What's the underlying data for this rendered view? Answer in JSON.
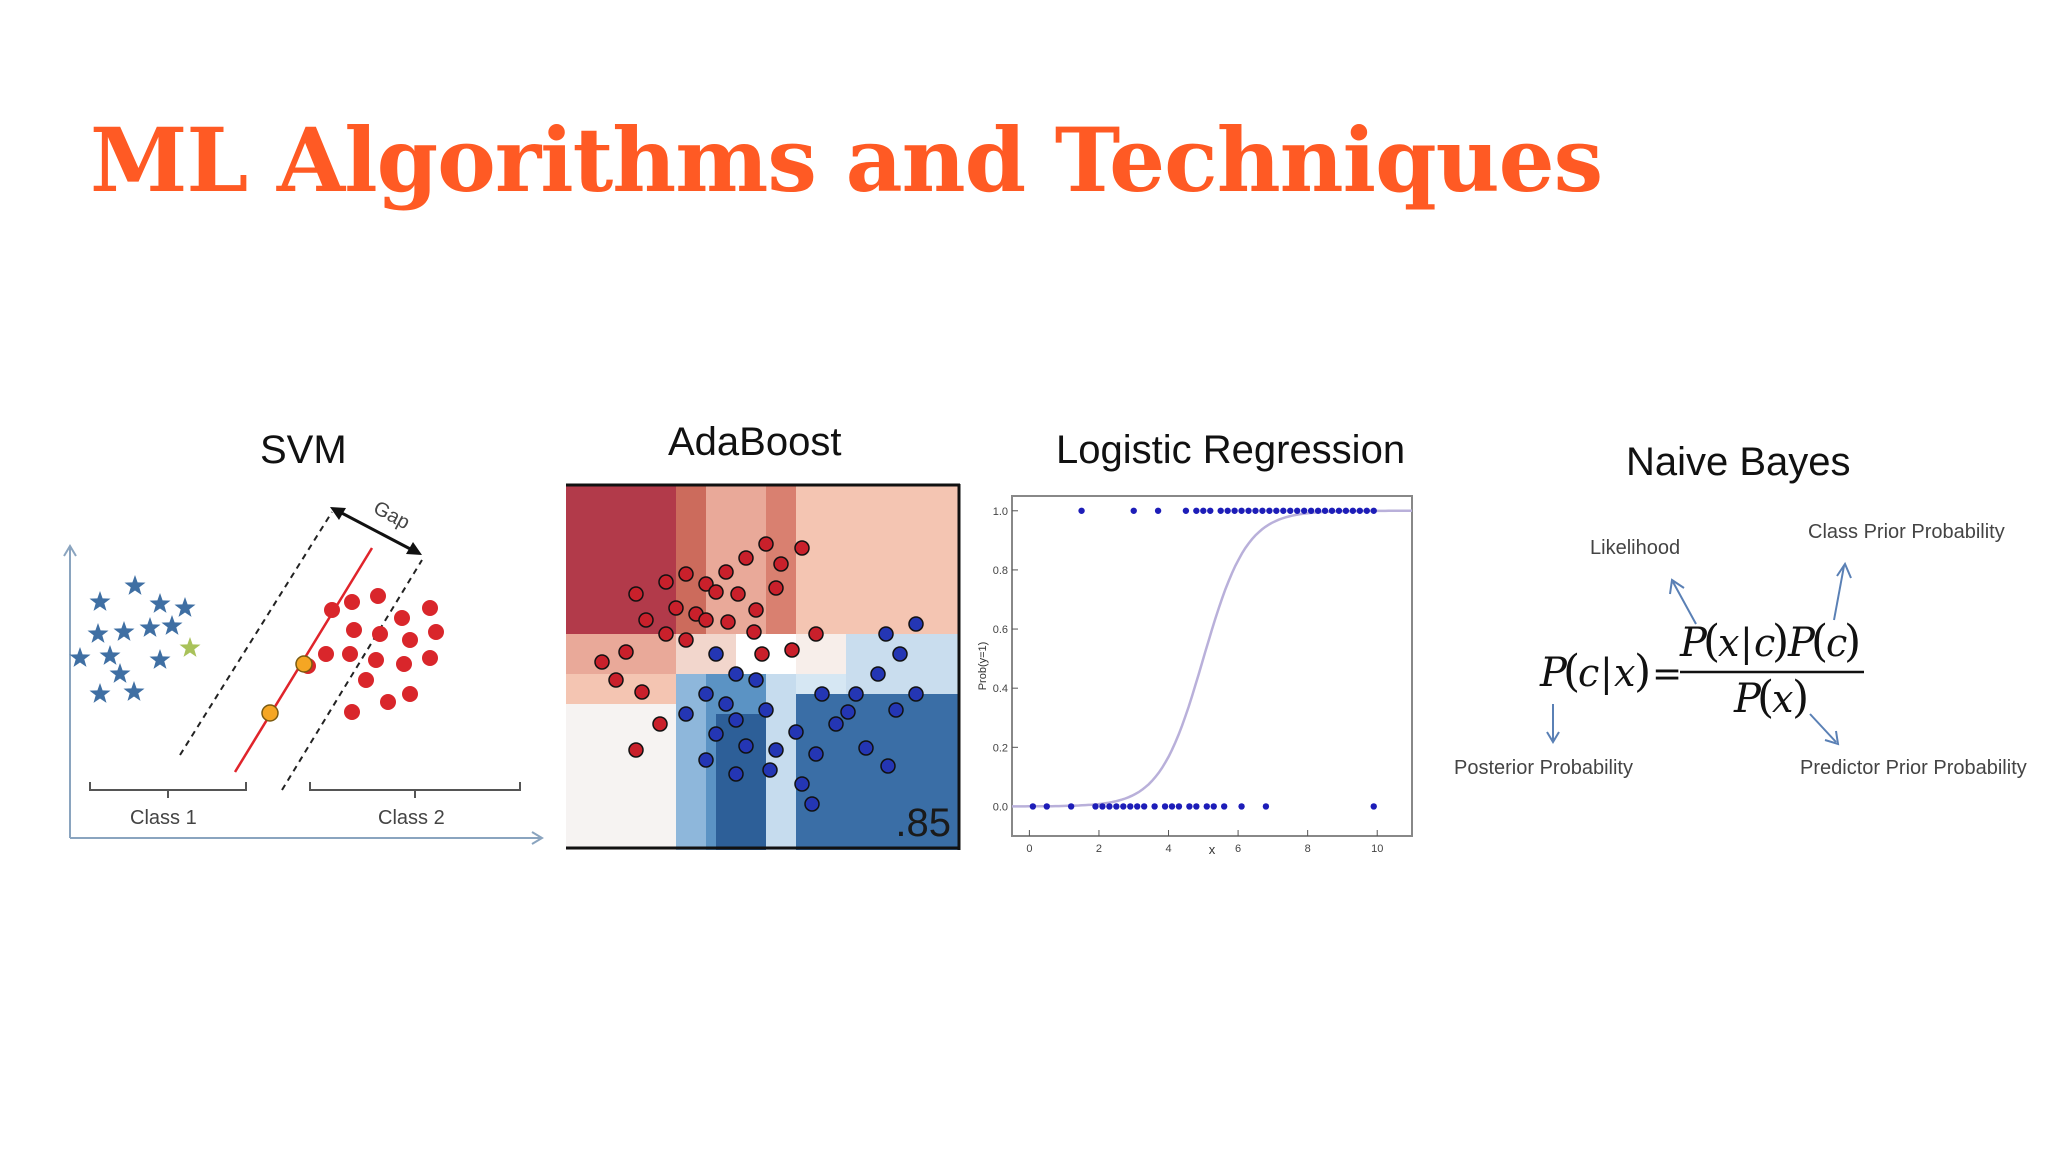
{
  "slide": {
    "title": "ML Algorithms and Techniques",
    "accent_color": "#ff5a24"
  },
  "panels": {
    "svm": {
      "title": "SVM",
      "gap_label": "Gap",
      "class1_label": "Class 1",
      "class2_label": "Class 2",
      "class1_color": "#3f6fa3",
      "class2_color": "#d9262b",
      "support_vector_color": "#f5a623"
    },
    "adaboost": {
      "title": "AdaBoost",
      "score": ".85"
    },
    "logistic_regression": {
      "title": "Logistic Regression",
      "xlabel": "x",
      "ylabel": "Prob(y=1)"
    },
    "naive_bayes": {
      "title": "Naive Bayes",
      "likelihood": "Likelihood",
      "class_prior": "Class Prior Probability",
      "posterior": "Posterior Probability",
      "predictor_prior": "Predictor Prior Probability"
    }
  },
  "chart_data": {
    "type": "scatter",
    "xlim": [
      -0.5,
      11
    ],
    "ylim": [
      -0.1,
      1.05
    ],
    "x_ticks": [
      "0",
      "2",
      "4",
      "6",
      "8",
      "10"
    ],
    "y_ticks": [
      "0.0",
      "0.2",
      "0.4",
      "0.6",
      "0.8",
      "1.0"
    ],
    "xlabel": "x",
    "ylabel": "Prob(y=1)",
    "points_y1": [
      1.5,
      3.0,
      3.7,
      4.5,
      4.8,
      5.0,
      5.2,
      5.5,
      5.7,
      5.9,
      6.1,
      6.3,
      6.5,
      6.7,
      6.9,
      7.1,
      7.3,
      7.5,
      7.7,
      7.9,
      8.1,
      8.3,
      8.5,
      8.7,
      8.9,
      9.1,
      9.3,
      9.5,
      9.7,
      9.9
    ],
    "points_y0": [
      0.1,
      0.5,
      1.2,
      1.9,
      2.1,
      2.3,
      2.5,
      2.7,
      2.9,
      3.1,
      3.3,
      3.6,
      3.9,
      4.1,
      4.3,
      4.6,
      4.8,
      5.1,
      5.3,
      5.6,
      6.1,
      6.8,
      9.9
    ],
    "curve_midpoint": 5.0,
    "curve_steepness": 1.6
  }
}
